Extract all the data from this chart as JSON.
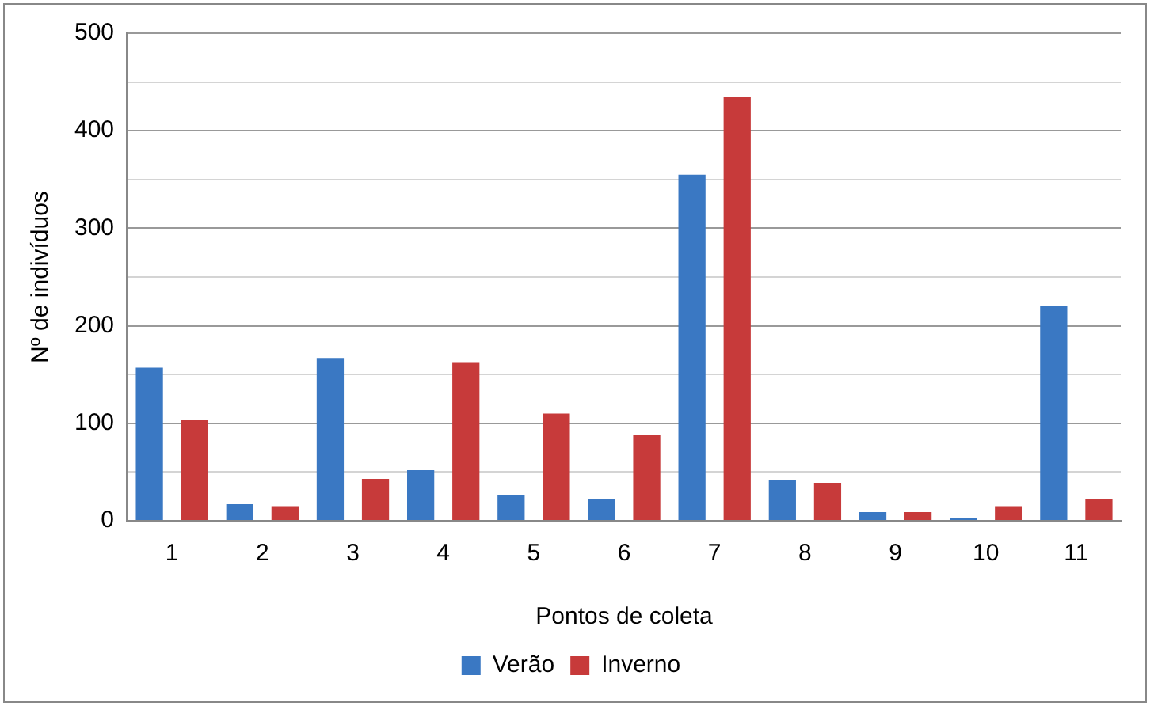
{
  "chart_data": {
    "type": "bar",
    "xlabel": "Pontos de coleta",
    "ylabel": "Nº de indivíduos",
    "categories": [
      "1",
      "2",
      "3",
      "4",
      "5",
      "6",
      "7",
      "8",
      "9",
      "10",
      "11"
    ],
    "series": [
      {
        "name": "Verão",
        "color": "#3a78c3",
        "values": [
          157,
          17,
          167,
          52,
          26,
          22,
          355,
          42,
          9,
          3,
          220
        ]
      },
      {
        "name": "Inverno",
        "color": "#c73a3a",
        "values": [
          103,
          15,
          43,
          162,
          110,
          88,
          435,
          39,
          9,
          15,
          22
        ]
      }
    ],
    "ylim": [
      0,
      500
    ],
    "yticks": [
      0,
      {
        "value": 50,
        "label": null
      },
      100,
      {
        "value": 150,
        "label": null
      },
      200,
      {
        "value": 250,
        "label": null
      },
      300,
      {
        "value": 350,
        "label": null
      },
      400,
      {
        "value": 450,
        "label": null
      },
      500
    ],
    "grid": "y",
    "legend": "bottom"
  }
}
